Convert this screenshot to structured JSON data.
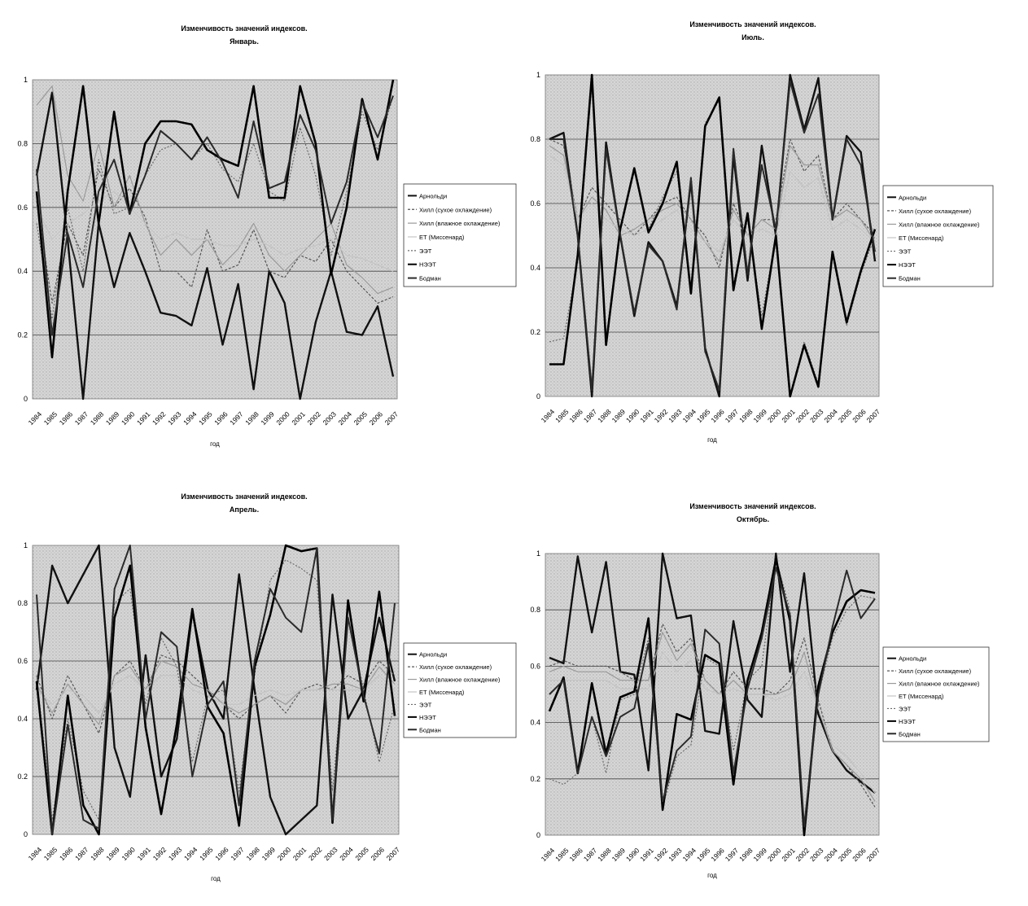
{
  "chart_data": [
    {
      "type": "line",
      "title": "Изменчивость значений индексов.",
      "subtitle": "Январь.",
      "xlabel": "год",
      "ylabel": "",
      "ylim": [
        0,
        1
      ],
      "yticks": [
        "0",
        "0.2",
        "0.4",
        "0.6",
        "0.8",
        "1"
      ],
      "grid": true,
      "legend_position": "right",
      "categories": [
        "1984",
        "1985",
        "1986",
        "1987",
        "1988",
        "1989",
        "1990",
        "1991",
        "1992",
        "1993",
        "1994",
        "1995",
        "1996",
        "1997",
        "1998",
        "1999",
        "2000",
        "2001",
        "2002",
        "2003",
        "2004",
        "2005",
        "2006",
        "2007"
      ],
      "series": [
        {
          "name": "Арнольди",
          "values": [
            0.7,
            0.96,
            0.5,
            0.0,
            0.55,
            0.35,
            0.52,
            0.4,
            0.27,
            0.26,
            0.23,
            0.41,
            0.17,
            0.36,
            0.03,
            0.4,
            0.3,
            0.0,
            0.24,
            0.4,
            0.21,
            0.2,
            0.29,
            0.07
          ]
        },
        {
          "name": "Хилл (сухое охлаждение)",
          "values": [
            0.62,
            0.3,
            0.55,
            0.45,
            0.72,
            0.6,
            0.66,
            0.57,
            0.4,
            0.4,
            0.35,
            0.53,
            0.4,
            0.42,
            0.53,
            0.4,
            0.38,
            0.45,
            0.43,
            0.5,
            0.4,
            0.35,
            0.3,
            0.32
          ]
        },
        {
          "name": "Хилл (влажное охлаждение)",
          "values": [
            0.92,
            0.98,
            0.7,
            0.62,
            0.8,
            0.6,
            0.7,
            0.55,
            0.45,
            0.5,
            0.45,
            0.5,
            0.42,
            0.47,
            0.55,
            0.45,
            0.4,
            0.45,
            0.5,
            0.55,
            0.42,
            0.38,
            0.33,
            0.35
          ]
        },
        {
          "name": "ET (Миссенард)",
          "values": [
            0.6,
            0.5,
            0.55,
            0.58,
            0.62,
            0.65,
            0.6,
            0.55,
            0.5,
            0.52,
            0.5,
            0.5,
            0.48,
            0.48,
            0.5,
            0.48,
            0.45,
            0.47,
            0.48,
            0.5,
            0.45,
            0.44,
            0.42,
            0.4
          ]
        },
        {
          "name": "ЭЭТ",
          "values": [
            0.55,
            0.25,
            0.6,
            0.4,
            0.75,
            0.58,
            0.6,
            0.7,
            0.78,
            0.8,
            0.75,
            0.8,
            0.72,
            0.68,
            0.8,
            0.65,
            0.62,
            0.85,
            0.7,
            0.45,
            0.65,
            0.9,
            0.78,
            0.95
          ]
        },
        {
          "name": "НЭЭТ",
          "values": [
            0.65,
            0.13,
            0.65,
            0.98,
            0.55,
            0.9,
            0.58,
            0.8,
            0.87,
            0.87,
            0.86,
            0.78,
            0.75,
            0.73,
            0.98,
            0.63,
            0.63,
            0.98,
            0.8,
            0.39,
            0.6,
            0.94,
            0.75,
            1.0
          ]
        },
        {
          "name": "Бодман",
          "values": [
            0.72,
            0.2,
            0.52,
            0.35,
            0.65,
            0.75,
            0.58,
            0.7,
            0.84,
            0.8,
            0.75,
            0.82,
            0.74,
            0.63,
            0.87,
            0.66,
            0.68,
            0.89,
            0.78,
            0.55,
            0.68,
            0.93,
            0.82,
            0.95
          ]
        }
      ]
    },
    {
      "type": "line",
      "title": "Изменчивость значений индексов.",
      "subtitle": "Июль.",
      "xlabel": "год",
      "ylabel": "",
      "ylim": [
        0,
        1
      ],
      "yticks": [
        "0",
        "0.2",
        "0.4",
        "0.6",
        "0.8",
        "1"
      ],
      "grid": true,
      "legend_position": "right",
      "categories": [
        "1984",
        "1985",
        "1986",
        "1987",
        "1988",
        "1989",
        "1990",
        "1991",
        "1992",
        "1993",
        "1994",
        "1995",
        "1996",
        "1997",
        "1998",
        "1999",
        "2000",
        "2001",
        "2002",
        "2003",
        "2004",
        "2005",
        "2006",
        "2007"
      ],
      "series": [
        {
          "name": "Арнольди",
          "values": [
            0.8,
            0.82,
            0.5,
            0.0,
            0.79,
            0.5,
            0.25,
            0.48,
            0.42,
            0.28,
            0.67,
            0.15,
            0.0,
            0.75,
            0.36,
            0.78,
            0.5,
            1.0,
            0.83,
            0.99,
            0.55,
            0.81,
            0.76,
            0.42
          ]
        },
        {
          "name": "Хилл (сухое охлаждение)",
          "values": [
            0.8,
            0.78,
            0.55,
            0.65,
            0.6,
            0.55,
            0.5,
            0.55,
            0.6,
            0.62,
            0.55,
            0.5,
            0.4,
            0.6,
            0.5,
            0.55,
            0.55,
            0.8,
            0.7,
            0.75,
            0.55,
            0.6,
            0.55,
            0.5
          ]
        },
        {
          "name": "Хилл (влажное охлаждение)",
          "values": [
            0.78,
            0.75,
            0.55,
            0.62,
            0.58,
            0.5,
            0.52,
            0.55,
            0.58,
            0.6,
            0.55,
            0.48,
            0.42,
            0.58,
            0.5,
            0.55,
            0.52,
            0.78,
            0.72,
            0.72,
            0.55,
            0.58,
            0.55,
            0.48
          ]
        },
        {
          "name": "ET (Миссенард)",
          "values": [
            0.75,
            0.72,
            0.55,
            0.6,
            0.55,
            0.52,
            0.5,
            0.52,
            0.55,
            0.58,
            0.52,
            0.48,
            0.45,
            0.55,
            0.5,
            0.52,
            0.5,
            0.7,
            0.65,
            0.68,
            0.52,
            0.55,
            0.52,
            0.48
          ]
        },
        {
          "name": "ЭЭТ",
          "values": [
            0.17,
            0.18,
            0.42,
            0.98,
            0.18,
            0.52,
            0.7,
            0.52,
            0.62,
            0.7,
            0.34,
            0.85,
            0.92,
            0.35,
            0.55,
            0.25,
            0.5,
            0.0,
            0.17,
            0.04,
            0.44,
            0.22,
            0.38,
            0.5
          ]
        },
        {
          "name": "НЭЭТ",
          "values": [
            0.1,
            0.1,
            0.44,
            1.0,
            0.16,
            0.52,
            0.71,
            0.51,
            0.6,
            0.73,
            0.32,
            0.84,
            0.93,
            0.33,
            0.57,
            0.21,
            0.5,
            0.0,
            0.16,
            0.03,
            0.45,
            0.23,
            0.39,
            0.52
          ]
        },
        {
          "name": "Бодман",
          "values": [
            0.8,
            0.8,
            0.5,
            0.02,
            0.77,
            0.5,
            0.26,
            0.47,
            0.42,
            0.27,
            0.68,
            0.14,
            0.02,
            0.77,
            0.38,
            0.72,
            0.52,
            0.98,
            0.82,
            0.94,
            0.55,
            0.8,
            0.72,
            0.45
          ]
        }
      ]
    },
    {
      "type": "line",
      "title": "Изменчивость значений индексов.",
      "subtitle": "Апрель.",
      "xlabel": "год",
      "ylabel": "",
      "ylim": [
        0,
        1
      ],
      "yticks": [
        "0",
        "0.2",
        "0.4",
        "0.6",
        "0.8",
        "1"
      ],
      "grid": true,
      "legend_position": "right",
      "categories": [
        "1984",
        "1985",
        "1986",
        "1987",
        "1988",
        "1989",
        "1990",
        "1991",
        "1992",
        "1993",
        "1994",
        "1995",
        "1996",
        "1997",
        "1998",
        "1999",
        "2000",
        "2001",
        "2002",
        "2003",
        "2004",
        "2005",
        "2006",
        "2007"
      ],
      "series": [
        {
          "name": "Арнольди",
          "values": [
            0.5,
            0.93,
            0.8,
            0.9,
            1.0,
            0.3,
            0.13,
            0.62,
            0.2,
            0.33,
            0.77,
            0.5,
            0.4,
            0.9,
            0.5,
            0.13,
            0.0,
            0.05,
            0.1,
            0.83,
            0.4,
            0.5,
            0.75,
            0.53
          ]
        },
        {
          "name": "Хилл (сухое охлаждение)",
          "values": [
            0.55,
            0.4,
            0.55,
            0.45,
            0.35,
            0.55,
            0.6,
            0.5,
            0.62,
            0.6,
            0.55,
            0.5,
            0.45,
            0.4,
            0.45,
            0.48,
            0.42,
            0.5,
            0.52,
            0.5,
            0.55,
            0.52,
            0.6,
            0.55
          ]
        },
        {
          "name": "Хилл (влажное охлаждение)",
          "values": [
            0.52,
            0.42,
            0.52,
            0.45,
            0.38,
            0.55,
            0.58,
            0.5,
            0.6,
            0.58,
            0.52,
            0.5,
            0.45,
            0.42,
            0.45,
            0.48,
            0.45,
            0.5,
            0.5,
            0.52,
            0.52,
            0.5,
            0.58,
            0.52
          ]
        },
        {
          "name": "ET (Миссенард)",
          "values": [
            0.5,
            0.45,
            0.5,
            0.48,
            0.42,
            0.52,
            0.55,
            0.5,
            0.55,
            0.55,
            0.5,
            0.48,
            0.45,
            0.45,
            0.48,
            0.5,
            0.48,
            0.5,
            0.5,
            0.5,
            0.5,
            0.5,
            0.55,
            0.5
          ]
        },
        {
          "name": "ЭЭТ",
          "values": [
            0.55,
            0.05,
            0.4,
            0.15,
            0.05,
            0.8,
            0.85,
            0.45,
            0.68,
            0.58,
            0.25,
            0.48,
            0.5,
            0.15,
            0.55,
            0.88,
            0.95,
            0.92,
            0.88,
            0.15,
            0.75,
            0.5,
            0.25,
            0.45
          ]
        },
        {
          "name": "НЭЭТ",
          "values": [
            0.53,
            0.0,
            0.48,
            0.1,
            0.0,
            0.75,
            0.93,
            0.37,
            0.07,
            0.38,
            0.78,
            0.44,
            0.35,
            0.03,
            0.58,
            0.76,
            1.0,
            0.98,
            0.99,
            0.04,
            0.81,
            0.46,
            0.84,
            0.41
          ]
        },
        {
          "name": "Бодман",
          "values": [
            0.83,
            0.0,
            0.38,
            0.05,
            0.02,
            0.85,
            1.0,
            0.4,
            0.7,
            0.65,
            0.2,
            0.45,
            0.53,
            0.1,
            0.6,
            0.85,
            0.75,
            0.7,
            0.99,
            0.05,
            0.75,
            0.48,
            0.28,
            0.8
          ]
        }
      ]
    },
    {
      "type": "line",
      "title": "Изменчивость значений индексов.",
      "subtitle": "Октябрь.",
      "xlabel": "год",
      "ylabel": "",
      "ylim": [
        0,
        1
      ],
      "yticks": [
        "0",
        "0.2",
        "0.4",
        "0.6",
        "0.8",
        "1"
      ],
      "grid": true,
      "legend_position": "right",
      "categories": [
        "1984",
        "1985",
        "1986",
        "1987",
        "1988",
        "1989",
        "1990",
        "1991",
        "1992",
        "1993",
        "1994",
        "1995",
        "1996",
        "1997",
        "1998",
        "1999",
        "2000",
        "2001",
        "2002",
        "2003",
        "2004",
        "2005",
        "2006",
        "2007"
      ],
      "series": [
        {
          "name": "Арнольди",
          "values": [
            0.63,
            0.61,
            0.99,
            0.72,
            0.97,
            0.58,
            0.57,
            0.23,
            1.0,
            0.77,
            0.78,
            0.37,
            0.36,
            0.76,
            0.48,
            0.42,
            1.0,
            0.58,
            0.93,
            0.43,
            0.3,
            0.23,
            0.19,
            0.15
          ]
        },
        {
          "name": "Хилл (сухое охлаждение)",
          "values": [
            0.6,
            0.62,
            0.6,
            0.6,
            0.6,
            0.58,
            0.55,
            0.55,
            0.75,
            0.65,
            0.7,
            0.55,
            0.5,
            0.58,
            0.52,
            0.52,
            0.5,
            0.55,
            0.7,
            0.48,
            0.3,
            0.25,
            0.18,
            0.1
          ]
        },
        {
          "name": "Хилл (влажное охлаждение)",
          "values": [
            0.58,
            0.6,
            0.58,
            0.58,
            0.58,
            0.55,
            0.55,
            0.55,
            0.72,
            0.62,
            0.68,
            0.55,
            0.5,
            0.55,
            0.5,
            0.5,
            0.5,
            0.52,
            0.65,
            0.45,
            0.3,
            0.25,
            0.2,
            0.12
          ]
        },
        {
          "name": "ET (Миссенард)",
          "values": [
            0.55,
            0.55,
            0.55,
            0.55,
            0.55,
            0.52,
            0.52,
            0.52,
            0.65,
            0.58,
            0.62,
            0.52,
            0.5,
            0.52,
            0.5,
            0.5,
            0.48,
            0.5,
            0.58,
            0.45,
            0.32,
            0.28,
            0.22,
            0.15
          ]
        },
        {
          "name": "ЭЭТ",
          "values": [
            0.2,
            0.18,
            0.22,
            0.42,
            0.22,
            0.48,
            0.5,
            0.7,
            0.1,
            0.28,
            0.32,
            0.63,
            0.6,
            0.3,
            0.55,
            0.6,
            0.98,
            0.8,
            0.02,
            0.5,
            0.7,
            0.8,
            0.85,
            0.84
          ]
        },
        {
          "name": "НЭЭТ",
          "values": [
            0.44,
            0.56,
            0.22,
            0.54,
            0.29,
            0.49,
            0.51,
            0.77,
            0.09,
            0.43,
            0.41,
            0.64,
            0.61,
            0.18,
            0.55,
            0.72,
            0.98,
            0.76,
            0.0,
            0.53,
            0.72,
            0.83,
            0.87,
            0.86
          ]
        },
        {
          "name": "Бодман",
          "values": [
            0.5,
            0.55,
            0.22,
            0.42,
            0.28,
            0.42,
            0.45,
            0.68,
            0.12,
            0.3,
            0.35,
            0.73,
            0.68,
            0.22,
            0.52,
            0.7,
            0.95,
            0.78,
            0.03,
            0.5,
            0.74,
            0.94,
            0.77,
            0.84
          ]
        }
      ]
    }
  ]
}
